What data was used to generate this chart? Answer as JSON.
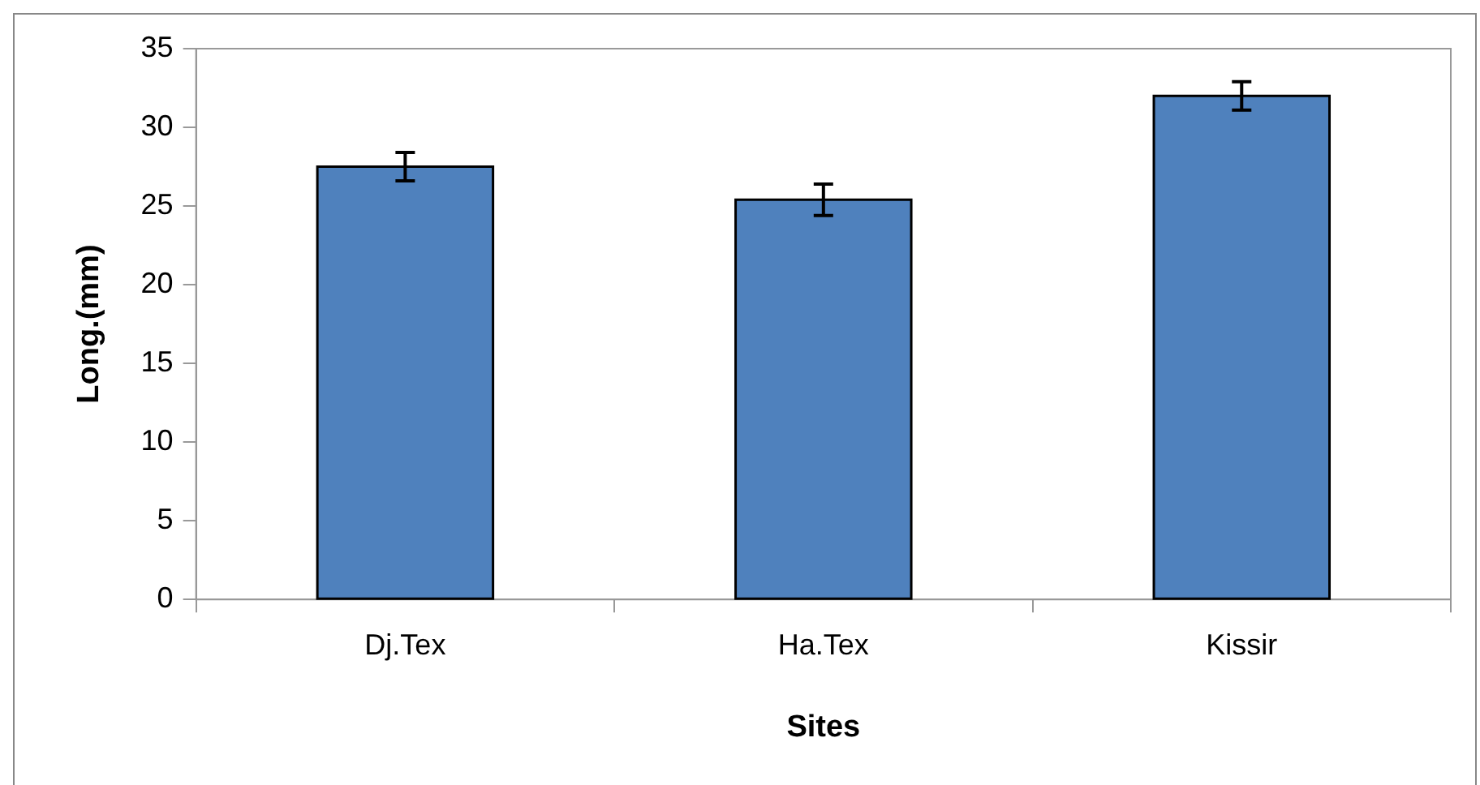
{
  "chart_data": {
    "type": "bar",
    "xlabel": "Sites",
    "ylabel": "Long.(mm)",
    "categories": [
      "Dj.Tex",
      "Ha.Tex",
      "Kissir"
    ],
    "values": [
      27.5,
      25.4,
      32.0
    ],
    "errors": [
      0.9,
      1.0,
      0.9
    ],
    "color": "#4f81bd",
    "ylim": [
      0,
      35
    ],
    "yticks": [
      0,
      5,
      10,
      15,
      20,
      25,
      30,
      35
    ],
    "grid": false,
    "legend": false
  }
}
